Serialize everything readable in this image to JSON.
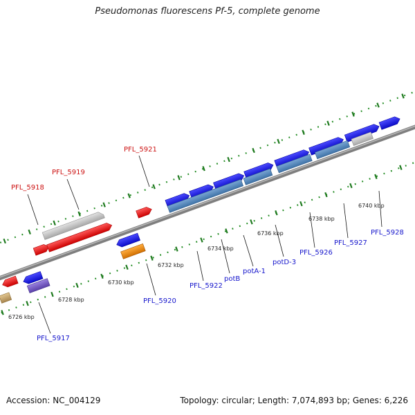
{
  "title": "Pseudomonas fluorescens Pf-5, complete genome",
  "footer": {
    "accession": "Accession: NC_004129",
    "summary": "Topology: circular; Length: 7,074,893 bp; Genes: 6,226"
  },
  "colors": {
    "backbone": "#7a7a7a",
    "tick": "#1f7a1f",
    "red_feature": "#ee1111",
    "blue_feature": "#1515dd",
    "steelblue_feature": "#4f86bd",
    "gray_feature": "#c4c4c4",
    "orange_feature": "#f08a10",
    "purple_feature": "#7a5cc8",
    "tan_feature": "#c9a870",
    "label_red": "#cc1111",
    "label_blue": "#1515cc"
  },
  "scale_labels": [
    "6726 kbp",
    "6728 kbp",
    "6730 kbp",
    "6732 kbp",
    "6734 kbp",
    "6736 kbp",
    "6738 kbp",
    "6740 kbp"
  ],
  "gene_labels": {
    "top": [
      "PFL_5918",
      "PFL_5919",
      "PFL_5921"
    ],
    "bottom": [
      "PFL_5917",
      "PFL_5920",
      "PFL_5922",
      "potB",
      "potA-1",
      "potD-3",
      "PFL_5926",
      "PFL_5927",
      "PFL_5928"
    ]
  }
}
